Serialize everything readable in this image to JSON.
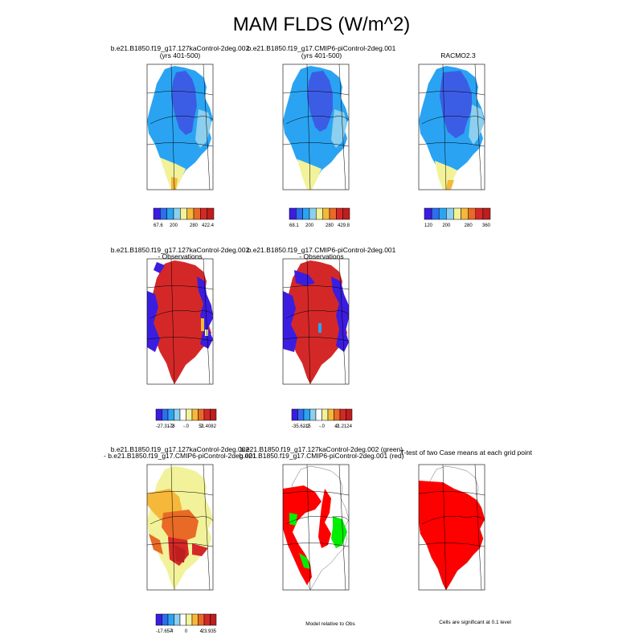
{
  "page": {
    "title": "MAM FLDS (W/m^2)"
  },
  "chart_data": [
    {
      "type": "heatmap",
      "panel": "case1",
      "title_lines": [
        "b.e21.B1850.f19_g17.127kaControl-2deg.002",
        "(yrs 401-500)"
      ],
      "colorbar": {
        "colors": [
          "#3b1de0",
          "#2f6cf0",
          "#2aa4f2",
          "#8ccfee",
          "#f2f29a",
          "#f5b83a",
          "#e86a26",
          "#d42828",
          "#bd1e1e"
        ],
        "tick_labels": [
          "67.6",
          "200",
          "280",
          "422.4"
        ]
      },
      "fill": "mostly medium-blue, core dark-blue, southern tip yellow/orange"
    },
    {
      "type": "heatmap",
      "panel": "case2",
      "title_lines": [
        "b.e21.B1850.f19_g17.CMIP6-piControl-2deg.001",
        "(yrs 401-500)"
      ],
      "colorbar": {
        "colors": [
          "#3b1de0",
          "#2f6cf0",
          "#2aa4f2",
          "#8ccfee",
          "#f2f29a",
          "#f5b83a",
          "#e86a26",
          "#d42828",
          "#bd1e1e"
        ],
        "tick_labels": [
          "68.1",
          "200",
          "280",
          "429.8"
        ]
      }
    },
    {
      "type": "heatmap",
      "panel": "obs",
      "title_lines": [
        "RACMO2.3"
      ],
      "colorbar": {
        "colors": [
          "#3b1de0",
          "#2f6cf0",
          "#2aa4f2",
          "#8ccfee",
          "#f2f29a",
          "#f5b83a",
          "#e86a26",
          "#d42828",
          "#bd1e1e"
        ],
        "tick_labels": [
          "120",
          "200",
          "280",
          "360"
        ]
      }
    },
    {
      "type": "heatmap",
      "panel": "diff1",
      "title_lines": [
        "b.e21.B1850.f19_g17.127kaControl-2deg.002",
        "- Observations"
      ],
      "colorbar": {
        "colors": [
          "#3b1de0",
          "#2f6cf0",
          "#2aa4f2",
          "#8ccfee",
          "#ffffff",
          "#f2f29a",
          "#f5b83a",
          "#e86a26",
          "#d42828",
          "#bd1e1e"
        ],
        "tick_labels": [
          "-27.3178",
          "-.2",
          "-.0",
          ".2",
          "51.4082"
        ]
      }
    },
    {
      "type": "heatmap",
      "panel": "diff2",
      "title_lines": [
        "b.e21.B1850.f19_g17.CMIP6-piControl-2deg.001",
        "- Observations"
      ],
      "colorbar": {
        "colors": [
          "#3b1de0",
          "#2f6cf0",
          "#2aa4f2",
          "#8ccfee",
          "#ffffff",
          "#f2f29a",
          "#f5b83a",
          "#e86a26",
          "#d42828",
          "#bd1e1e"
        ],
        "tick_labels": [
          "-35.6215",
          "-.2",
          "-.0",
          ".2",
          "41.2124"
        ]
      }
    },
    {
      "type": "heatmap",
      "panel": "casediff",
      "title_lines": [
        "b.e21.B1850.f19_g17.127kaControl-2deg.002",
        "- b.e21.B1850.f19_g17.CMIP6-piControl-2deg.001"
      ],
      "colorbar": {
        "colors": [
          "#3b1de0",
          "#2f6cf0",
          "#2aa4f2",
          "#8ccfee",
          "#ffffff",
          "#f2f29a",
          "#f5b83a",
          "#e86a26",
          "#d42828",
          "#bd1e1e"
        ],
        "tick_labels": [
          "-17.657",
          "-4",
          "0",
          "4",
          "23.935"
        ]
      }
    },
    {
      "type": "heatmap",
      "panel": "relative",
      "title_lines": [
        "b.e21.B1850.f19_g17.127kaControl-2deg.002 (green)",
        "b.e21.B1850.f19_g17.CMIP6-piControl-2deg.001 (red)"
      ],
      "note": "Model relative to Obs"
    },
    {
      "type": "heatmap",
      "panel": "ttest",
      "title_lines": [
        "T-test of two Case means at each grid point"
      ],
      "note": "Cells are significant at 0.1 level"
    }
  ]
}
